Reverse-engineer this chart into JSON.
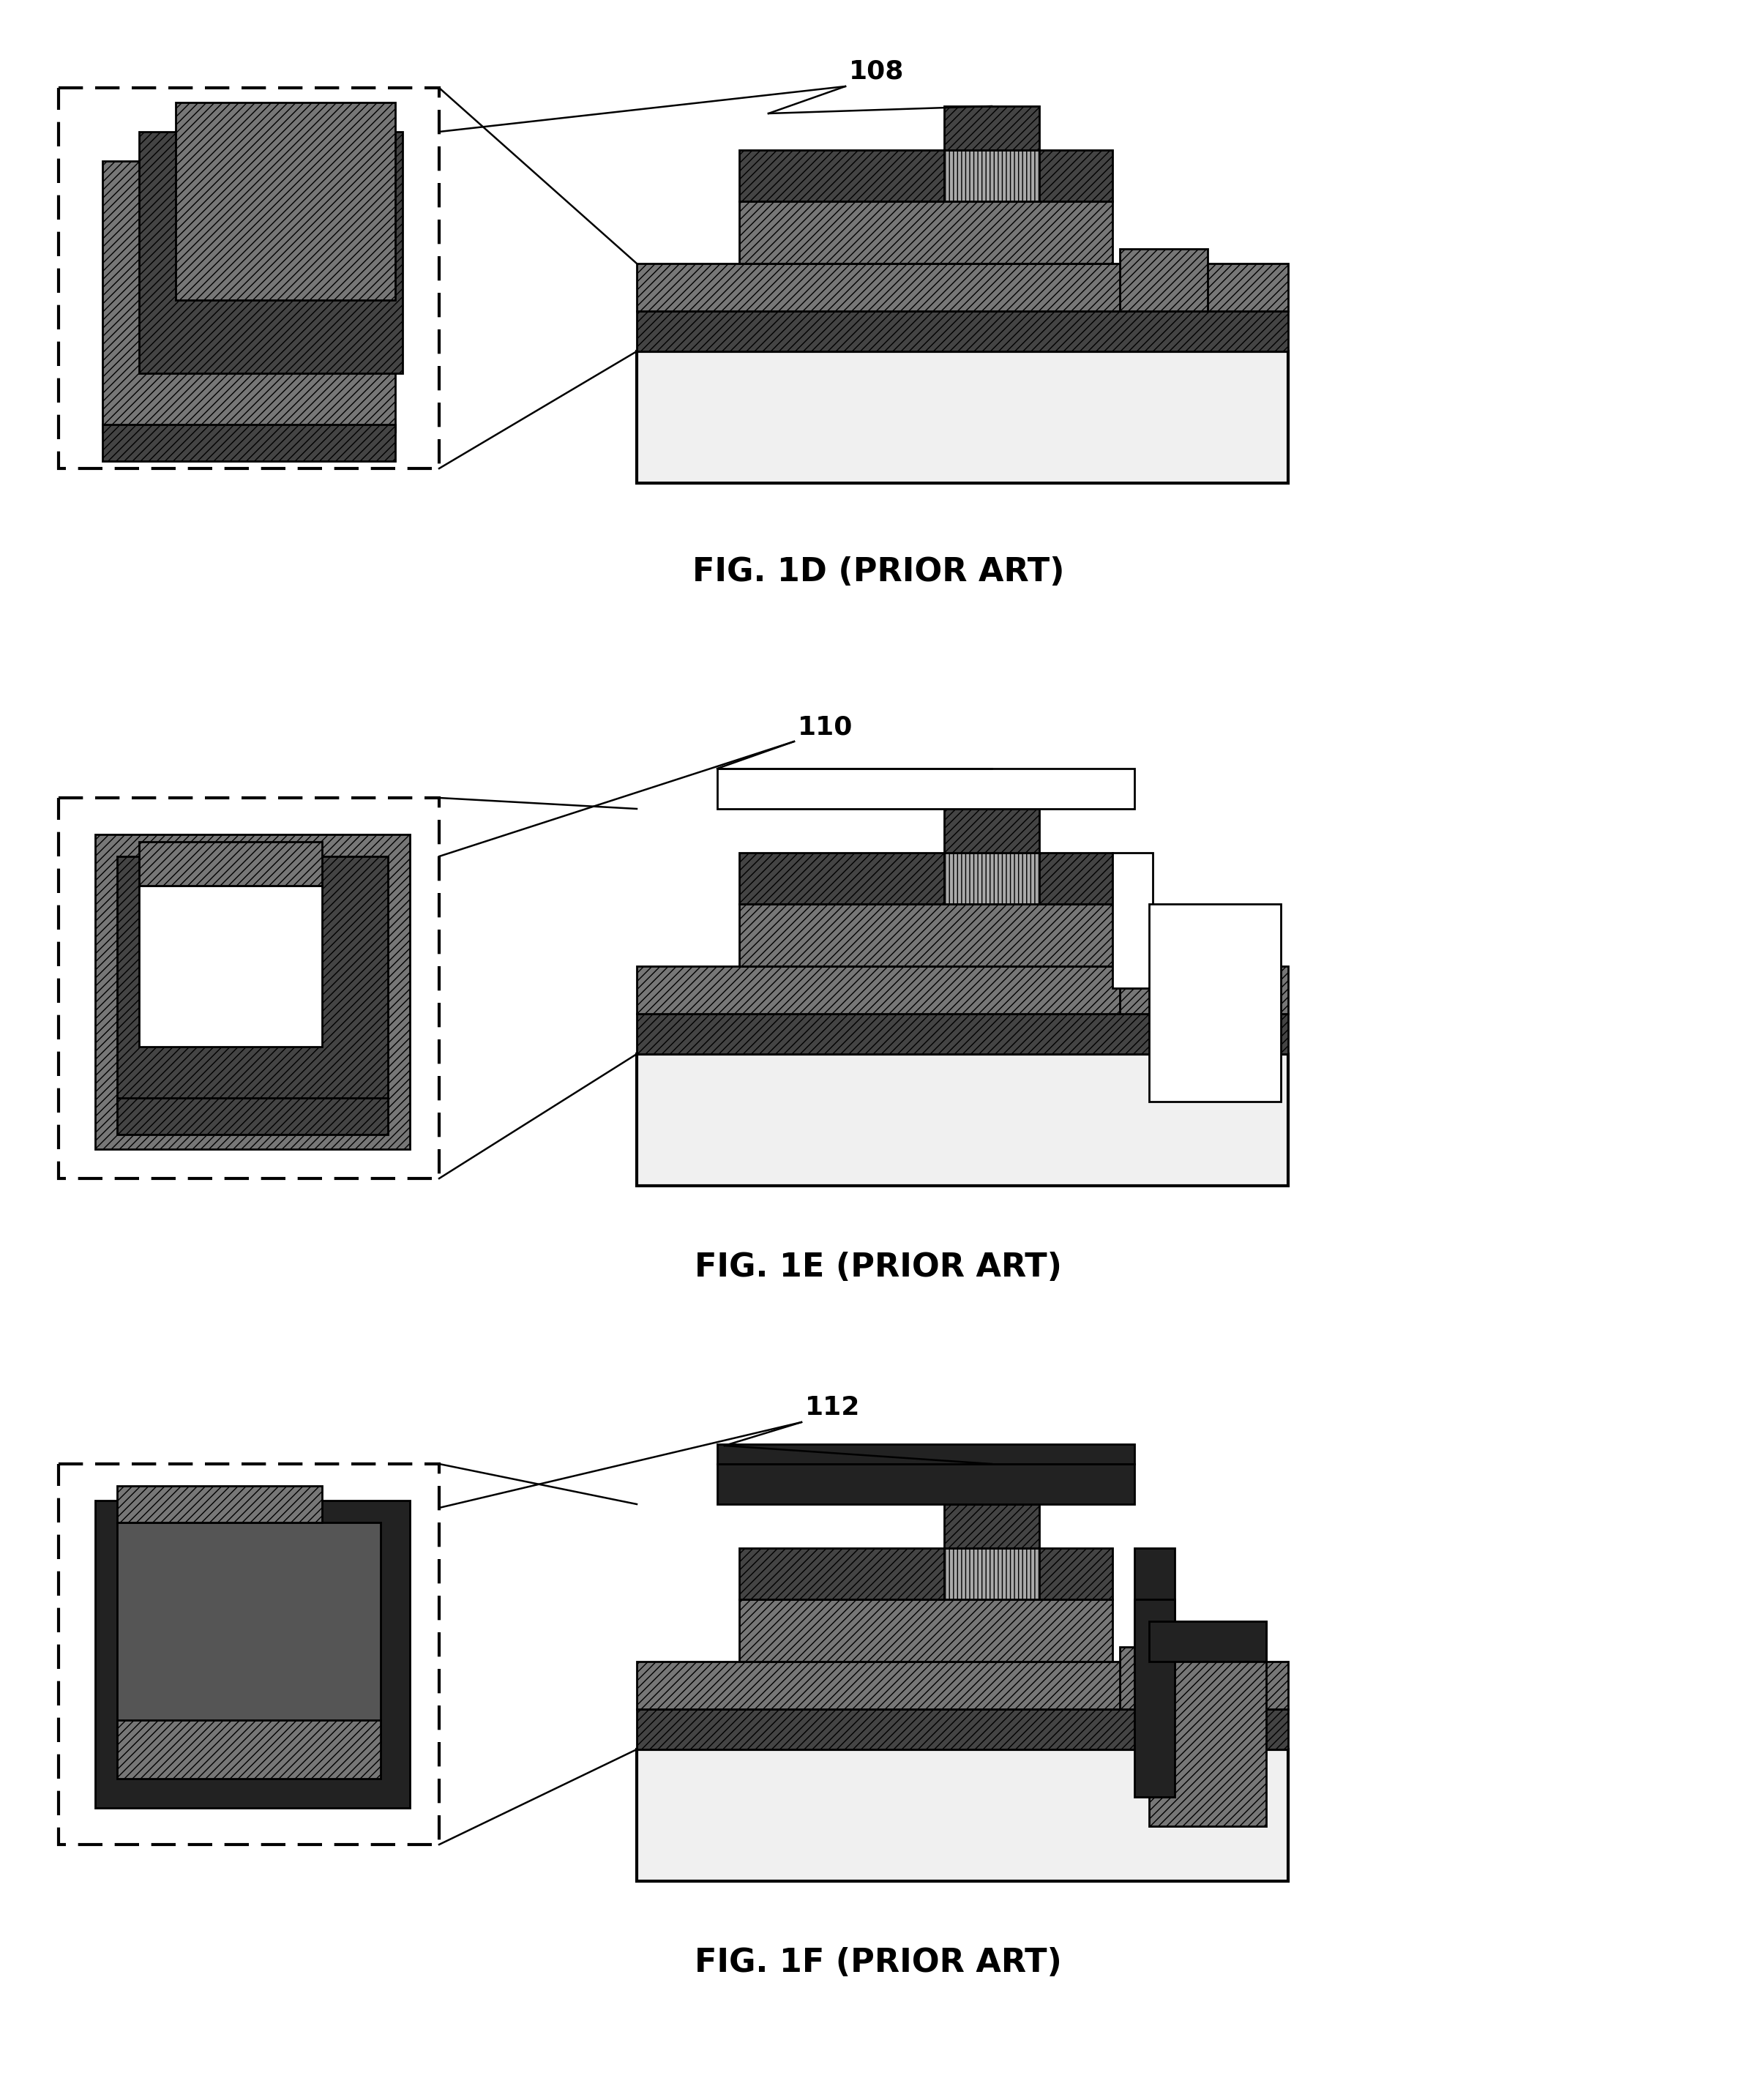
{
  "fig_labels": [
    "FIG. 1D (PRIOR ART)",
    "FIG. 1E (PRIOR ART)",
    "FIG. 1F (PRIOR ART)"
  ],
  "callout_labels": [
    "108",
    "110",
    "112"
  ],
  "background_color": "#ffffff",
  "fig_label_fontsize": 32,
  "callout_fontsize": 26,
  "colors": {
    "substrate_white": "#f5f5f5",
    "layer_dark": "#555555",
    "layer_hatch": "#888888",
    "layer_medium": "#777777",
    "layer_vdark": "#333333",
    "stripe_light": "#aaaaaa",
    "black": "#000000"
  }
}
